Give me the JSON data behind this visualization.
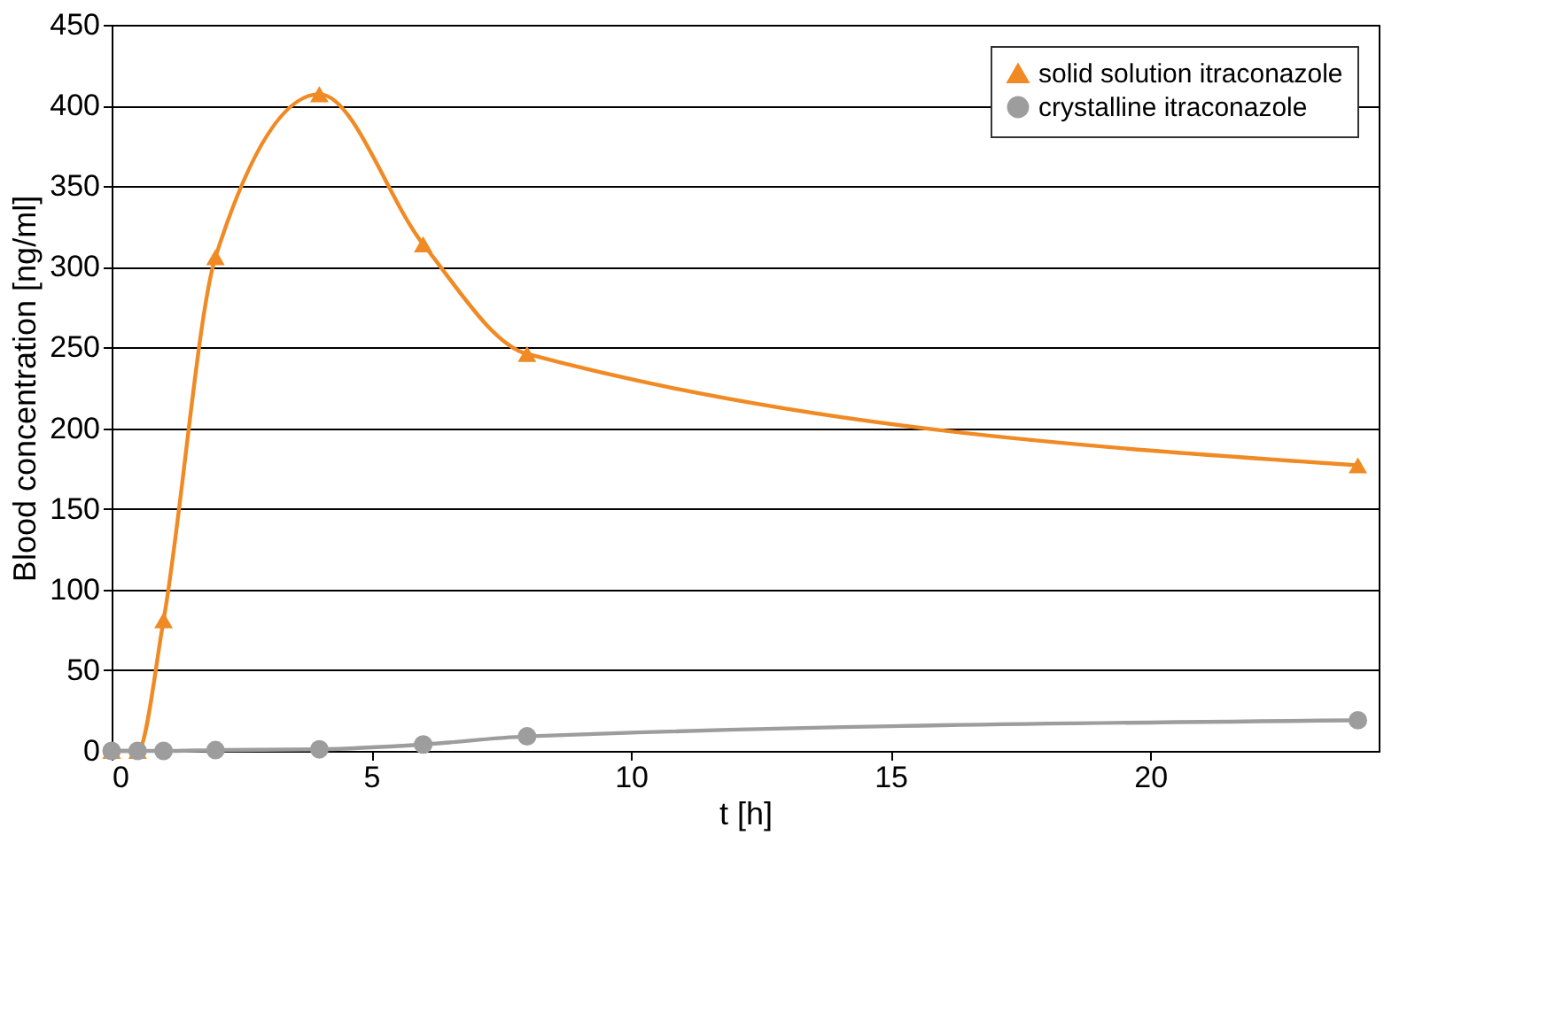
{
  "chart_data": {
    "type": "line",
    "xlabel": "t [h]",
    "ylabel": "Blood concentration [ng/ml]",
    "x": [
      0,
      0.5,
      1,
      2,
      4,
      6,
      8,
      24
    ],
    "series": [
      {
        "name": "solid solution itraconazole",
        "color": "#f08a24",
        "marker": "triangle",
        "values": [
          0,
          0,
          81,
          306,
          407,
          314,
          246,
          177
        ]
      },
      {
        "name": "crystalline itraconazole",
        "color": "#9d9d9d",
        "marker": "circle",
        "values": [
          0,
          0,
          0,
          0.5,
          1,
          4,
          9,
          19
        ]
      }
    ],
    "xlim": [
      0,
      24.4
    ],
    "xticks": [
      0,
      5,
      10,
      15,
      20
    ],
    "ylim": [
      0,
      450
    ],
    "yticks": [
      0,
      50,
      100,
      150,
      200,
      250,
      300,
      350,
      400,
      450
    ],
    "grid": "y",
    "legend": "top right"
  }
}
